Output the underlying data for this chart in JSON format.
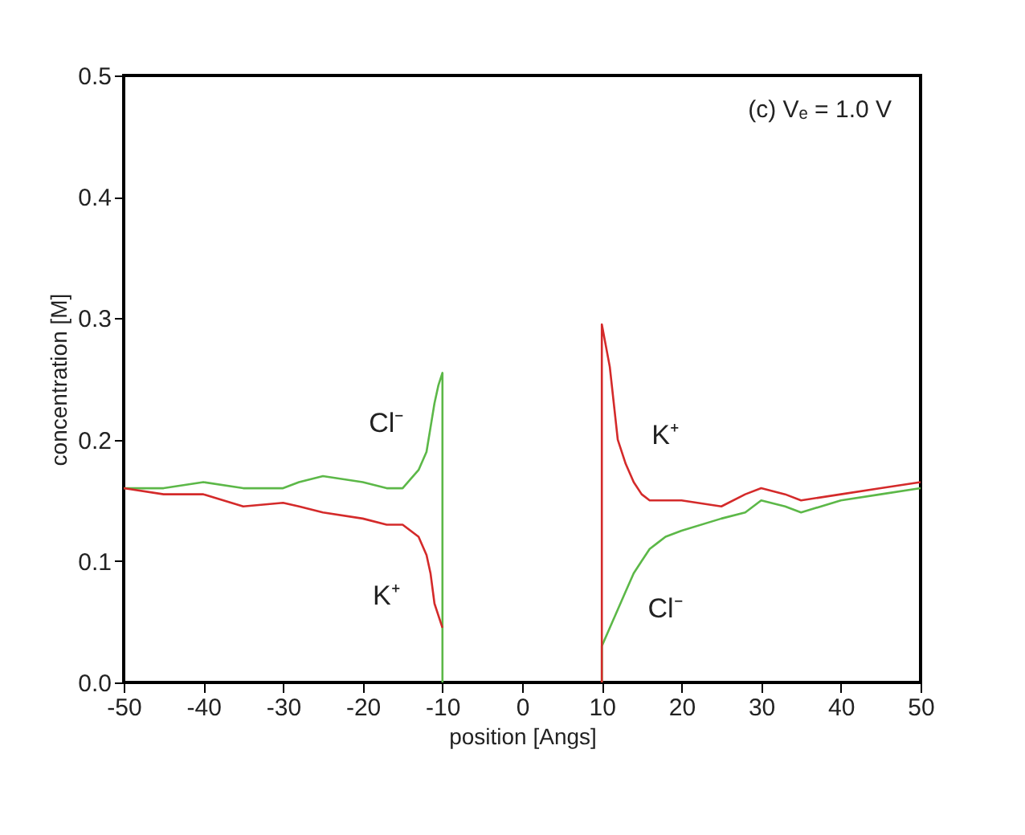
{
  "chart_data": {
    "type": "line",
    "xlabel": "position [Angs]",
    "ylabel": "concentration [M]",
    "x": [
      -50,
      -45,
      -40,
      -35,
      -30,
      -28,
      -25,
      -20,
      -17,
      -15,
      -13,
      -12,
      -11.5,
      -11,
      -10.5,
      -10,
      -10,
      null,
      10,
      10,
      11,
      12,
      13,
      14,
      15,
      16,
      17,
      18,
      20,
      25,
      28,
      30,
      33,
      35,
      40,
      45,
      50
    ],
    "series": [
      {
        "name": "Cl⁻",
        "color": "#5cb848",
        "values": [
          0.16,
          0.16,
          0.165,
          0.16,
          0.16,
          0.165,
          0.17,
          0.165,
          0.16,
          0.16,
          0.175,
          0.19,
          0.21,
          0.23,
          0.245,
          0.255,
          0.0,
          null,
          0.0,
          0.03,
          0.045,
          0.06,
          0.075,
          0.09,
          0.1,
          0.11,
          0.115,
          0.12,
          0.125,
          0.135,
          0.14,
          0.15,
          0.145,
          0.14,
          0.15,
          0.155,
          0.16
        ]
      },
      {
        "name": "K⁺",
        "color": "#d42a2a",
        "values": [
          0.16,
          0.155,
          0.155,
          0.145,
          0.148,
          0.145,
          0.14,
          0.135,
          0.13,
          0.13,
          0.12,
          0.105,
          0.09,
          0.065,
          0.055,
          0.045,
          null,
          null,
          0.0,
          0.295,
          0.26,
          0.2,
          0.18,
          0.165,
          0.155,
          0.15,
          0.15,
          0.15,
          0.15,
          0.145,
          0.155,
          0.16,
          0.155,
          0.15,
          0.155,
          0.16,
          0.165
        ]
      }
    ],
    "xlim": [
      -50,
      50
    ],
    "xticks": [
      -50,
      -40,
      -30,
      -20,
      -10,
      0,
      10,
      20,
      30,
      40,
      50
    ],
    "ylim": [
      0,
      0.5
    ],
    "yticks": [
      {
        "value": 0,
        "label": "0.0"
      },
      0.1,
      0.2,
      0.3,
      0.4,
      0.5
    ],
    "grid": false,
    "legend": false,
    "marker": "none",
    "line_style": "solid",
    "annotations": [
      "(c) Vₑ = 1.0 V"
    ]
  }
}
